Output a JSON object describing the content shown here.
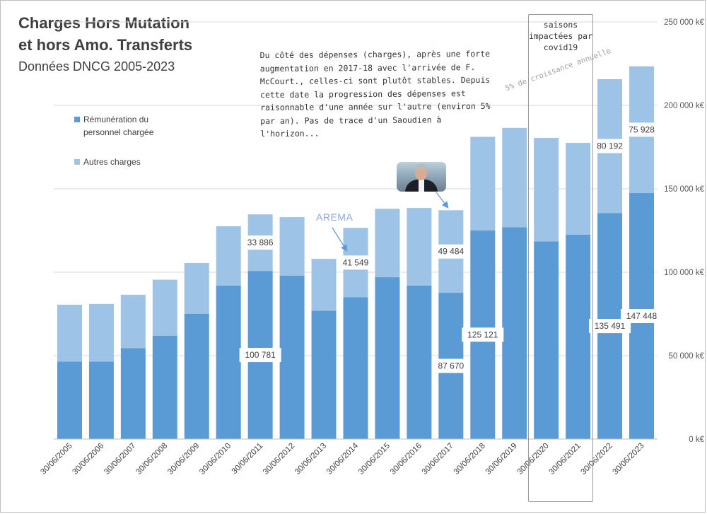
{
  "chart_data": {
    "type": "bar",
    "stacked": true,
    "title": "Charges Hors Mutation",
    "title_line2": "et hors Amo. Transferts",
    "subtitle": "Données DNCG 2005-2023",
    "categories": [
      "30/06/2005",
      "30/06/2006",
      "30/06/2007",
      "30/06/2008",
      "30/06/2009",
      "30/06/2010",
      "30/06/2011",
      "30/06/2012",
      "30/06/2013",
      "30/06/2014",
      "30/06/2015",
      "30/06/2016",
      "30/06/2017",
      "30/06/2018",
      "30/06/2019",
      "30/06/2020",
      "30/06/2021",
      "30/06/2022",
      "30/06/2023"
    ],
    "series": [
      {
        "name": "Rémunération du personnel chargée",
        "color": "#5b9bd5",
        "values": [
          46500,
          46500,
          54500,
          62000,
          75000,
          92000,
          100781,
          98000,
          77000,
          85000,
          97000,
          92000,
          87670,
          125121,
          127000,
          118500,
          122500,
          135491,
          147448
        ]
      },
      {
        "name": "Autres charges",
        "color": "#9dc3e6",
        "values": [
          34000,
          34500,
          32000,
          33500,
          30500,
          35500,
          33886,
          35000,
          31000,
          41549,
          41000,
          46500,
          49484,
          56000,
          59500,
          62000,
          55000,
          80192,
          75928
        ]
      }
    ],
    "ylim": [
      0,
      250000
    ],
    "yticks": [
      0,
      50000,
      100000,
      150000,
      200000,
      250000
    ],
    "ytick_labels": [
      "0 k€",
      "50 000 k€",
      "100 000 k€",
      "150 000 k€",
      "200 000 k€",
      "250 000 k€"
    ],
    "data_labels": [
      {
        "category": "30/06/2011",
        "series": 0,
        "text": "100 781"
      },
      {
        "category": "30/06/2011",
        "series": 1,
        "text": "33 886"
      },
      {
        "category": "30/06/2014",
        "series": 1,
        "text": "41 549"
      },
      {
        "category": "30/06/2017",
        "series": 0,
        "text": "87 670"
      },
      {
        "category": "30/06/2017",
        "series": 1,
        "text": "49 484"
      },
      {
        "category": "30/06/2018",
        "series": 0,
        "text": "125 121"
      },
      {
        "category": "30/06/2022",
        "series": 0,
        "text": "135 491"
      },
      {
        "category": "30/06/2022",
        "series": 1,
        "text": "80 192"
      },
      {
        "category": "30/06/2023",
        "series": 0,
        "text": "147 448"
      },
      {
        "category": "30/06/2023",
        "series": 1,
        "text": "75 928"
      }
    ],
    "grid": true,
    "axis_position": "right"
  },
  "legend": {
    "item1": "Rémunération du personnel chargée",
    "item2": "Autres charges"
  },
  "annotation": "Du côté des dépenses (charges), après une forte augmentation en 2017-18 avec l'arrivée de F. McCourt., celles-ci sont plutôt stables. Depuis cette date la progression des dépenses est raisonnable d'une année sur l'autre (environ 5% par an). Pas de trace d'un Saoudien à l'horizon...",
  "covid_note": "saisons impactées par covid19",
  "growth_note": "5% de croissance annuelle",
  "logo_text": "AREMA",
  "colors": {
    "accent": "#5b9bd5",
    "accent_light": "#9dc3e6",
    "gridline": "#d9d9d9",
    "text": "#404040"
  }
}
